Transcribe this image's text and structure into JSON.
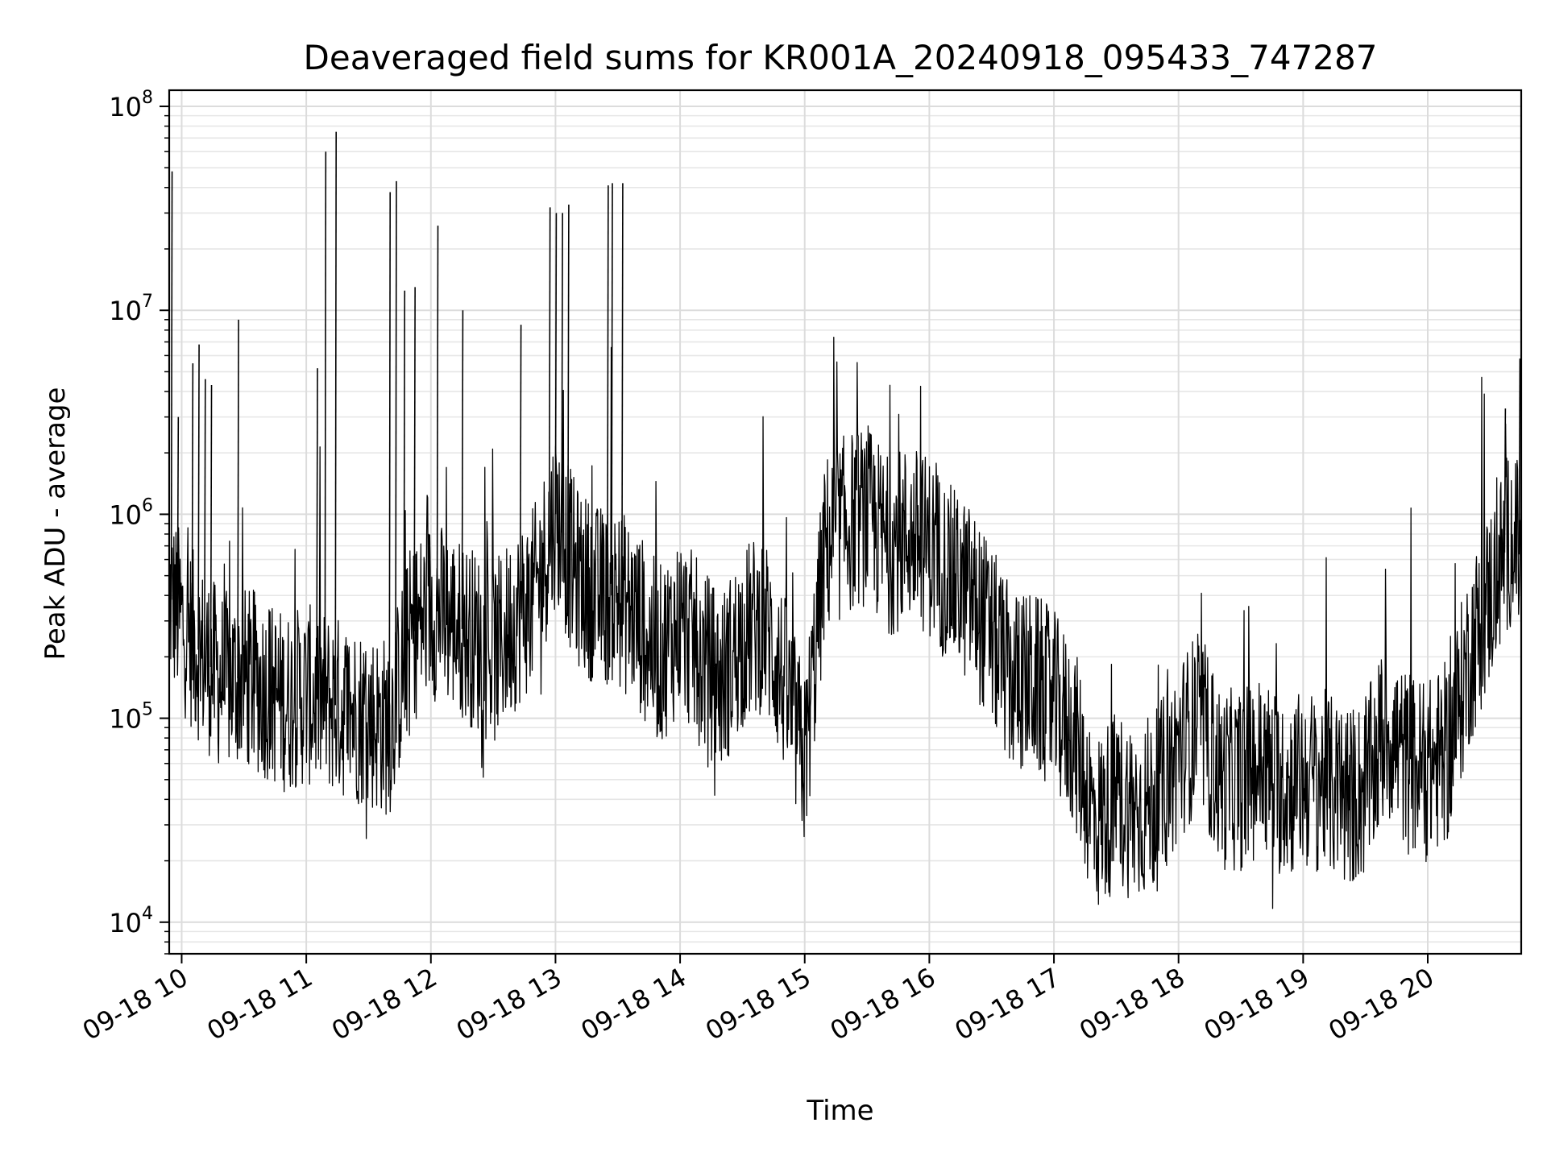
{
  "chart_data": {
    "type": "line",
    "title": "Deaveraged field sums for KR001A_20240918_095433_747287",
    "xlabel": "Time",
    "ylabel": "Peak ADU - average",
    "yscale": "log",
    "ylim": [
      7000,
      120000000
    ],
    "xlim": [
      "2024-09-18 09:54",
      "2024-09-18 20:45"
    ],
    "grid": true,
    "line_color": "#000000",
    "x_ticks": [
      {
        "label": "09-18 10",
        "value": "2024-09-18 10:00"
      },
      {
        "label": "09-18 11",
        "value": "2024-09-18 11:00"
      },
      {
        "label": "09-18 12",
        "value": "2024-09-18 12:00"
      },
      {
        "label": "09-18 13",
        "value": "2024-09-18 13:00"
      },
      {
        "label": "09-18 14",
        "value": "2024-09-18 14:00"
      },
      {
        "label": "09-18 15",
        "value": "2024-09-18 15:00"
      },
      {
        "label": "09-18 16",
        "value": "2024-09-18 16:00"
      },
      {
        "label": "09-18 17",
        "value": "2024-09-18 17:00"
      },
      {
        "label": "09-18 18",
        "value": "2024-09-18 18:00"
      },
      {
        "label": "09-18 19",
        "value": "2024-09-18 19:00"
      },
      {
        "label": "09-18 20",
        "value": "2024-09-18 20:00"
      }
    ],
    "y_ticks": [
      {
        "base": "10",
        "exp": "4",
        "value": 10000
      },
      {
        "base": "10",
        "exp": "5",
        "value": 100000
      },
      {
        "base": "10",
        "exp": "6",
        "value": 1000000
      },
      {
        "base": "10",
        "exp": "7",
        "value": 10000000
      },
      {
        "base": "10",
        "exp": "8",
        "value": 100000000
      }
    ],
    "series": [
      {
        "x": [
          "2024-09-18 09:54",
          "2024-09-18 10:00",
          "2024-09-18 10:10",
          "2024-09-18 10:20",
          "2024-09-18 10:30",
          "2024-09-18 10:40",
          "2024-09-18 10:50",
          "2024-09-18 11:00",
          "2024-09-18 11:10",
          "2024-09-18 11:20",
          "2024-09-18 11:30",
          "2024-09-18 11:40",
          "2024-09-18 11:50",
          "2024-09-18 12:00",
          "2024-09-18 12:10",
          "2024-09-18 12:20",
          "2024-09-18 12:30",
          "2024-09-18 12:40",
          "2024-09-18 12:50",
          "2024-09-18 13:00",
          "2024-09-18 13:10",
          "2024-09-18 13:20",
          "2024-09-18 13:30",
          "2024-09-18 13:40",
          "2024-09-18 13:50",
          "2024-09-18 14:00",
          "2024-09-18 14:10",
          "2024-09-18 14:20",
          "2024-09-18 14:30",
          "2024-09-18 14:40",
          "2024-09-18 14:50",
          "2024-09-18 15:00",
          "2024-09-18 15:10",
          "2024-09-18 15:20",
          "2024-09-18 15:30",
          "2024-09-18 15:40",
          "2024-09-18 15:50",
          "2024-09-18 16:00",
          "2024-09-18 16:10",
          "2024-09-18 16:20",
          "2024-09-18 16:30",
          "2024-09-18 16:40",
          "2024-09-18 16:50",
          "2024-09-18 17:00",
          "2024-09-18 17:10",
          "2024-09-18 17:20",
          "2024-09-18 17:30",
          "2024-09-18 17:40",
          "2024-09-18 17:50",
          "2024-09-18 18:00",
          "2024-09-18 18:10",
          "2024-09-18 18:20",
          "2024-09-18 18:30",
          "2024-09-18 18:40",
          "2024-09-18 18:50",
          "2024-09-18 19:00",
          "2024-09-18 19:10",
          "2024-09-18 19:20",
          "2024-09-18 19:30",
          "2024-09-18 19:40",
          "2024-09-18 19:50",
          "2024-09-18 20:00",
          "2024-09-18 20:10",
          "2024-09-18 20:20",
          "2024-09-18 20:30",
          "2024-09-18 20:40",
          "2024-09-18 20:45"
        ],
        "y": [
          400000,
          300000,
          200000,
          150000,
          160000,
          140000,
          120000,
          130000,
          120000,
          110000,
          100000,
          90000,
          250000,
          350000,
          300000,
          250000,
          200000,
          300000,
          400000,
          1000000,
          500000,
          400000,
          400000,
          300000,
          200000,
          300000,
          200000,
          150000,
          250000,
          300000,
          150000,
          60000,
          700000,
          900000,
          1000000,
          700000,
          800000,
          700000,
          500000,
          400000,
          250000,
          150000,
          150000,
          120000,
          80000,
          30000,
          40000,
          35000,
          40000,
          70000,
          100000,
          50000,
          50000,
          60000,
          45000,
          50000,
          50000,
          40000,
          45000,
          90000,
          60000,
          55000,
          70000,
          200000,
          400000,
          800000,
          600000
        ]
      }
    ],
    "spikes": [
      {
        "x": "2024-09-18 09:55",
        "y": 48000000
      },
      {
        "x": "2024-09-18 09:58",
        "y": 3000000
      },
      {
        "x": "2024-09-18 10:05",
        "y": 5500000
      },
      {
        "x": "2024-09-18 10:08",
        "y": 6800000
      },
      {
        "x": "2024-09-18 10:11",
        "y": 4600000
      },
      {
        "x": "2024-09-18 10:14",
        "y": 4300000
      },
      {
        "x": "2024-09-18 10:27",
        "y": 9000000
      },
      {
        "x": "2024-09-18 11:05",
        "y": 5200000
      },
      {
        "x": "2024-09-18 11:09",
        "y": 60000000
      },
      {
        "x": "2024-09-18 11:14",
        "y": 75000000
      },
      {
        "x": "2024-09-18 11:40",
        "y": 38000000
      },
      {
        "x": "2024-09-18 11:43",
        "y": 43000000
      },
      {
        "x": "2024-09-18 11:47",
        "y": 12500000
      },
      {
        "x": "2024-09-18 11:52",
        "y": 13000000
      },
      {
        "x": "2024-09-18 12:03",
        "y": 26000000
      },
      {
        "x": "2024-09-18 12:15",
        "y": 10000000
      },
      {
        "x": "2024-09-18 12:43",
        "y": 8500000
      },
      {
        "x": "2024-09-18 12:57",
        "y": 32000000
      },
      {
        "x": "2024-09-18 13:00",
        "y": 30000000
      },
      {
        "x": "2024-09-18 13:03",
        "y": 30000000
      },
      {
        "x": "2024-09-18 13:06",
        "y": 33000000
      },
      {
        "x": "2024-09-18 13:25",
        "y": 41000000
      },
      {
        "x": "2024-09-18 13:27",
        "y": 42000000
      },
      {
        "x": "2024-09-18 13:32",
        "y": 42000000
      },
      {
        "x": "2024-09-18 20:37",
        "y": 3300000
      },
      {
        "x": "2024-09-18 20:44",
        "y": 5800000
      }
    ]
  }
}
